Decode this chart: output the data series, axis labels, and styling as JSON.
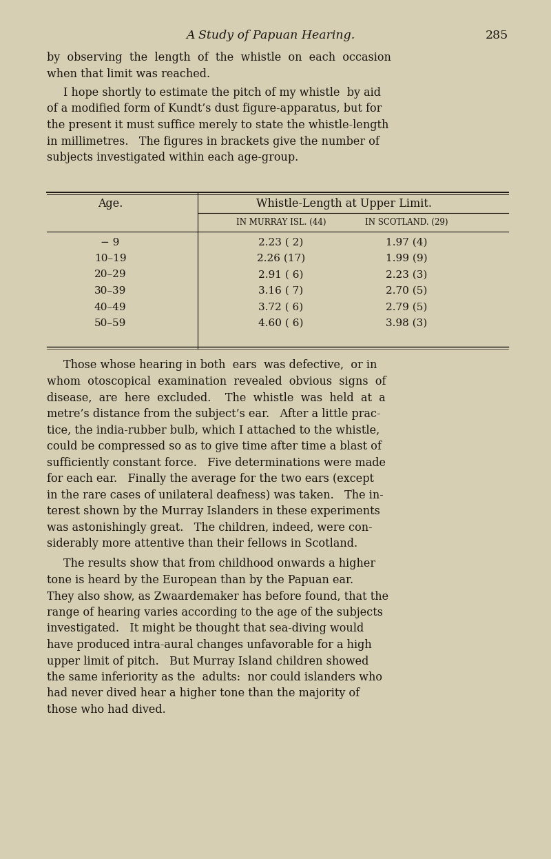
{
  "bg_color": "#d6cfb4",
  "text_color": "#1a1510",
  "page_title": "A Study of Papuan Hearing.",
  "page_number": "285",
  "title_fontsize": 12.5,
  "body_fontsize": 11.5,
  "table_fontsize": 11.0,
  "small_caps_fontsize": 8.5,
  "para1_lines": [
    "by  observing  the  length  of  the  whistle  on  each  occasion",
    "when that limit was reached."
  ],
  "para2_lines": [
    "I hope shortly to estimate the pitch of my whistle  by aid",
    "of a modified form of Kundt’s dust figure-apparatus, but for",
    "the present it must suffice merely to state the whistle-length",
    "in millimetres.   The figures in brackets give the number of",
    "subjects investigated within each age-group."
  ],
  "table_header1": "Age.",
  "table_header2": "Whistle-Length at Upper Limit.",
  "table_subheader1": "in murray isl. (44)",
  "table_subheader2": "in scotland. (29)",
  "table_rows": [
    [
      "− 9",
      "2.23 ( 2)",
      "1.97 (4)"
    ],
    [
      "10–19",
      "2.26 (17)",
      "1.99 (9)"
    ],
    [
      "20–29",
      "2.91 ( 6)",
      "2.23 (3)"
    ],
    [
      "30–39",
      "3.16 ( 7)",
      "2.70 (5)"
    ],
    [
      "40–49",
      "3.72 ( 6)",
      "2.79 (5)"
    ],
    [
      "50–59",
      "4.60 ( 6)",
      "3.98 (3)"
    ]
  ],
  "para3_lines": [
    "Those whose hearing in both  ears  was defective,  or in",
    "whom  otoscopical  examination  revealed  obvious  signs  of",
    "disease,  are  here  excluded.    The  whistle  was  held  at  a",
    "metre’s distance from the subject’s ear.   After a little prac-",
    "tice, the india-rubber bulb, which I attached to the whistle,",
    "could be compressed so as to give time after time a blast of",
    "sufficiently constant force.   Five determinations were made",
    "for each ear.   Finally the average for the two ears (except",
    "in the rare cases of unilateral deafness) was taken.   The in-",
    "terest shown by the Murray Islanders in these experiments",
    "was astonishingly great.   The children, indeed, were con-",
    "siderably more attentive than their fellows in Scotland."
  ],
  "para4_lines": [
    "The results show that from childhood onwards a higher",
    "tone is heard by the European than by the Papuan ear.",
    "They also show, as Zwaardemaker has before found, that the",
    "range of hearing varies according to the age of the subjects",
    "investigated.   It might be thought that sea-diving would",
    "have produced intra-aural changes unfavorable for a high",
    "upper limit of pitch.   But Murray Island children showed",
    "the same inferiority as the  adults:  nor could islanders who",
    "had never dived hear a higher tone than the majority of",
    "those who had dived."
  ]
}
